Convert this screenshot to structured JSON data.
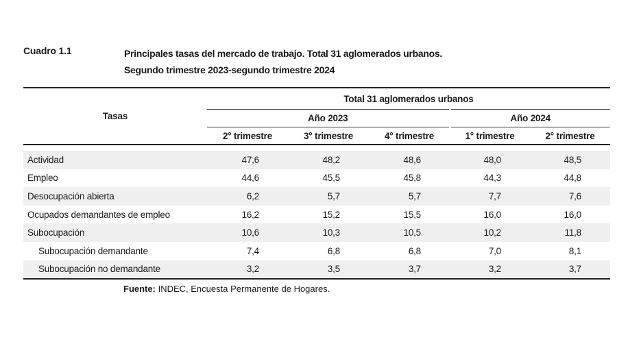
{
  "header": {
    "cuadro": "Cuadro 1.1",
    "title_line1": "Principales tasas del mercado de trabajo. Total 31 aglomerados urbanos.",
    "title_line2": "Segundo trimestre 2023-segundo trimestre 2024"
  },
  "table": {
    "row_header": "Tasas",
    "group_header": "Total 31 aglomerados urbanos",
    "years": [
      "Año 2023",
      "Año 2024"
    ],
    "quarters": [
      "2° trimestre",
      "3° trimestre",
      "4° trimestre",
      "1° trimestre",
      "2° trimestre"
    ],
    "rows": [
      {
        "label": "Actividad",
        "values": [
          "47,6",
          "48,2",
          "48,6",
          "48,0",
          "48,5"
        ]
      },
      {
        "label": "Empleo",
        "values": [
          "44,6",
          "45,5",
          "45,8",
          "44,3",
          "44,8"
        ]
      },
      {
        "label": "Desocupación abierta",
        "values": [
          "6,2",
          "5,7",
          "5,7",
          "7,7",
          "7,6"
        ]
      },
      {
        "label": "Ocupados demandantes de empleo",
        "values": [
          "16,2",
          "15,2",
          "15,5",
          "16,0",
          "16,0"
        ]
      },
      {
        "label": "Subocupación",
        "values": [
          "10,6",
          "10,3",
          "10,5",
          "10,2",
          "11,8"
        ]
      },
      {
        "label": "Subocupación demandante",
        "values": [
          "7,4",
          "6,8",
          "6,8",
          "7,0",
          "8,1"
        ]
      },
      {
        "label": "Subocupación no demandante",
        "values": [
          "3,2",
          "3,5",
          "3,7",
          "3,2",
          "3,7"
        ]
      }
    ]
  },
  "source": {
    "label": "Fuente:",
    "text": "INDEC, Encuesta Permanente de Hogares."
  }
}
